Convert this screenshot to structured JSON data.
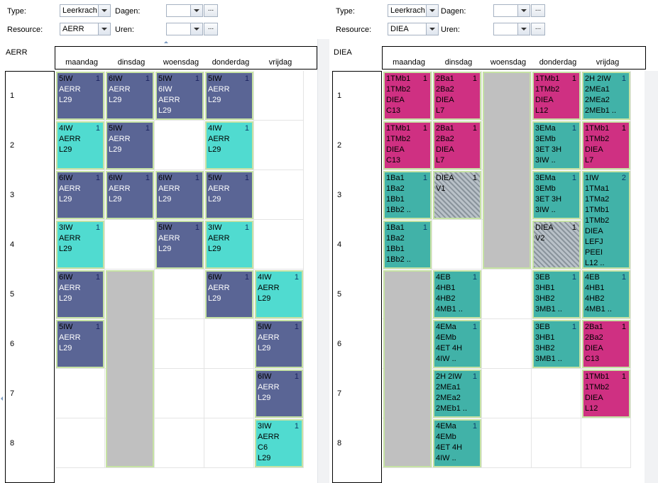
{
  "left": {
    "filters": {
      "type_label": "Type:",
      "type_value": "Leerkracht",
      "resource_label": "Resource:",
      "resource_value": "AERR",
      "dagen_label": "Dagen:",
      "dagen_value": "",
      "uren_label": "Uren:",
      "uren_value": "",
      "ellipsis": "..."
    },
    "resource_title": "AERR",
    "days": [
      "maandag",
      "dinsdag",
      "woensdag",
      "donderdag",
      "vrijdag"
    ],
    "rows": [
      "1",
      "2",
      "3",
      "4",
      "5",
      "6",
      "7",
      "8"
    ],
    "blocks": [
      {
        "day": 0,
        "row": 0,
        "span": 1,
        "color": "navy",
        "lines": [
          "5IW",
          "AERR",
          "L29"
        ],
        "count": "1"
      },
      {
        "day": 1,
        "row": 0,
        "span": 1,
        "color": "navy",
        "lines": [
          "6IW",
          "AERR",
          "L29"
        ],
        "count": "1"
      },
      {
        "day": 2,
        "row": 0,
        "span": 1,
        "color": "navy",
        "lines": [
          "5IW",
          "6IW",
          "AERR",
          "L29"
        ],
        "count": "1"
      },
      {
        "day": 3,
        "row": 0,
        "span": 1,
        "color": "navy",
        "lines": [
          "5IW",
          "AERR",
          "L29"
        ],
        "count": "1"
      },
      {
        "day": 0,
        "row": 1,
        "span": 1,
        "color": "cyan",
        "lines": [
          "4IW",
          "AERR",
          "L29"
        ],
        "count": "1"
      },
      {
        "day": 1,
        "row": 1,
        "span": 1,
        "color": "navy",
        "lines": [
          "5IW",
          "AERR",
          "L29"
        ],
        "count": "1"
      },
      {
        "day": 3,
        "row": 1,
        "span": 1,
        "color": "cyan",
        "lines": [
          "4IW",
          "AERR",
          "L29"
        ],
        "count": "1"
      },
      {
        "day": 0,
        "row": 2,
        "span": 1,
        "color": "navy",
        "lines": [
          "6IW",
          "AERR",
          "L29"
        ],
        "count": "1"
      },
      {
        "day": 1,
        "row": 2,
        "span": 1,
        "color": "navy",
        "lines": [
          "6IW",
          "AERR",
          "L29"
        ],
        "count": "1"
      },
      {
        "day": 2,
        "row": 2,
        "span": 1,
        "color": "navy",
        "lines": [
          "6IW",
          "AERR",
          "L29"
        ],
        "count": "1"
      },
      {
        "day": 3,
        "row": 2,
        "span": 1,
        "color": "navy",
        "lines": [
          "5IW",
          "AERR",
          "L29"
        ],
        "count": "1"
      },
      {
        "day": 0,
        "row": 3,
        "span": 1,
        "color": "cyan",
        "lines": [
          "3IW",
          "AERR",
          "L29"
        ],
        "count": "1"
      },
      {
        "day": 2,
        "row": 3,
        "span": 1,
        "color": "navy",
        "lines": [
          "5IW",
          "AERR",
          "L29"
        ],
        "count": "1"
      },
      {
        "day": 3,
        "row": 3,
        "span": 1,
        "color": "cyan",
        "lines": [
          "3IW",
          "AERR",
          "L29"
        ],
        "count": "1"
      },
      {
        "day": 0,
        "row": 4,
        "span": 1,
        "color": "navy",
        "lines": [
          "6IW",
          "AERR",
          "L29"
        ],
        "count": "1"
      },
      {
        "day": 1,
        "row": 4,
        "span": 4,
        "color": "grey",
        "lines": [],
        "count": ""
      },
      {
        "day": 3,
        "row": 4,
        "span": 1,
        "color": "navy",
        "lines": [
          "6IW",
          "AERR",
          "L29"
        ],
        "count": "1"
      },
      {
        "day": 4,
        "row": 4,
        "span": 1,
        "color": "cyan",
        "lines": [
          "4IW",
          "AERR",
          "L29"
        ],
        "count": "1"
      },
      {
        "day": 0,
        "row": 5,
        "span": 1,
        "color": "navy",
        "lines": [
          "5IW",
          "AERR",
          "L29"
        ],
        "count": "1"
      },
      {
        "day": 4,
        "row": 5,
        "span": 1,
        "color": "navy",
        "lines": [
          "5IW",
          "AERR",
          "L29"
        ],
        "count": "1"
      },
      {
        "day": 4,
        "row": 6,
        "span": 1,
        "color": "navy",
        "lines": [
          "6IW",
          "AERR",
          "L29"
        ],
        "count": "1"
      },
      {
        "day": 4,
        "row": 7,
        "span": 1,
        "color": "cyan",
        "lines": [
          "3IW",
          "AERR",
          "C6",
          "L29"
        ],
        "count": "1"
      }
    ]
  },
  "right": {
    "filters": {
      "type_label": "Type:",
      "type_value": "Leerkracht",
      "resource_label": "Resource:",
      "resource_value": "DIEA",
      "dagen_label": "Dagen:",
      "dagen_value": "",
      "uren_label": "Uren:",
      "uren_value": "",
      "ellipsis": "..."
    },
    "resource_title": "DIEA",
    "days": [
      "maandag",
      "dinsdag",
      "woensdag",
      "donderdag",
      "vrijdag"
    ],
    "rows": [
      "1",
      "2",
      "3",
      "4",
      "5",
      "6",
      "7",
      "8"
    ],
    "blocks": [
      {
        "day": 0,
        "row": 0,
        "span": 1,
        "color": "magenta",
        "lines": [
          "1TMb1",
          "1TMb2",
          "DIEA",
          "C13"
        ],
        "count": "1"
      },
      {
        "day": 1,
        "row": 0,
        "span": 1,
        "color": "magenta",
        "lines": [
          "2Ba1",
          "2Ba2",
          "DIEA",
          "L7"
        ],
        "count": "1"
      },
      {
        "day": 2,
        "row": 0,
        "span": 4,
        "color": "grey",
        "lines": [],
        "count": ""
      },
      {
        "day": 3,
        "row": 0,
        "span": 1,
        "color": "magenta",
        "lines": [
          "1TMb1",
          "1TMb2",
          "DIEA",
          "L12"
        ],
        "count": "1"
      },
      {
        "day": 4,
        "row": 0,
        "span": 1,
        "color": "teal",
        "lines": [
          "2H    2IW",
          "2MEa1",
          "2MEa2",
          "2MEb1 .."
        ],
        "count": "1"
      },
      {
        "day": 0,
        "row": 1,
        "span": 1,
        "color": "magenta",
        "lines": [
          "1TMb1",
          "1TMb2",
          "DIEA",
          "C13"
        ],
        "count": "1"
      },
      {
        "day": 1,
        "row": 1,
        "span": 1,
        "color": "magenta",
        "lines": [
          "2Ba1",
          "2Ba2",
          "DIEA",
          "L7"
        ],
        "count": "1"
      },
      {
        "day": 3,
        "row": 1,
        "span": 1,
        "color": "teal",
        "lines": [
          "3EMa",
          "3EMb",
          "3ET    3H",
          "3IW   .."
        ],
        "count": "1"
      },
      {
        "day": 4,
        "row": 1,
        "span": 1,
        "color": "magenta",
        "lines": [
          "1TMb1",
          "1TMb2",
          "DIEA",
          "L7"
        ],
        "count": "1"
      },
      {
        "day": 0,
        "row": 2,
        "span": 1,
        "color": "teal",
        "lines": [
          "1Ba1",
          "1Ba2",
          "1Bb1",
          "1Bb2 .."
        ],
        "count": "1"
      },
      {
        "day": 1,
        "row": 2,
        "span": 1,
        "color": "hatch",
        "lines": [
          "DIEA",
          "V1"
        ],
        "count": "1"
      },
      {
        "day": 3,
        "row": 2,
        "span": 1,
        "color": "teal",
        "lines": [
          "3EMa",
          "3EMb",
          "3ET    3H",
          "3IW   .."
        ],
        "count": "1"
      },
      {
        "day": 4,
        "row": 2,
        "span": 2,
        "color": "teal",
        "lines": [
          "1IW",
          "1TMa1",
          "1TMa2",
          "1TMb1",
          "1TMb2",
          "DIEA",
          "LEFJ",
          "PEEI",
          "L12 .."
        ],
        "count": "2"
      },
      {
        "day": 0,
        "row": 3,
        "span": 1,
        "color": "teal",
        "lines": [
          "1Ba1",
          "1Ba2",
          "1Bb1",
          "1Bb2 .."
        ],
        "count": "1"
      },
      {
        "day": 3,
        "row": 3,
        "span": 1,
        "color": "hatch",
        "lines": [
          "DIEA",
          "V2"
        ],
        "count": "1"
      },
      {
        "day": 0,
        "row": 4,
        "span": 4,
        "color": "grey",
        "lines": [],
        "count": ""
      },
      {
        "day": 1,
        "row": 4,
        "span": 1,
        "color": "teal",
        "lines": [
          "4EB",
          "4HB1",
          "4HB2",
          "4MB1 .."
        ],
        "count": "1"
      },
      {
        "day": 3,
        "row": 4,
        "span": 1,
        "color": "teal",
        "lines": [
          "3EB",
          "3HB1",
          "3HB2",
          "3MB1 .."
        ],
        "count": "1"
      },
      {
        "day": 4,
        "row": 4,
        "span": 1,
        "color": "teal",
        "lines": [
          "4EB",
          "4HB1",
          "4HB2",
          "4MB1 .."
        ],
        "count": "1"
      },
      {
        "day": 1,
        "row": 5,
        "span": 1,
        "color": "teal",
        "lines": [
          "4EMa",
          "4EMb",
          "4ET    4H",
          "4IW   .."
        ],
        "count": "1"
      },
      {
        "day": 3,
        "row": 5,
        "span": 1,
        "color": "teal",
        "lines": [
          "3EB",
          "3HB1",
          "3HB2",
          "3MB1 .."
        ],
        "count": "1"
      },
      {
        "day": 4,
        "row": 5,
        "span": 1,
        "color": "magenta",
        "lines": [
          "2Ba1",
          "2Ba2",
          "DIEA",
          "C13"
        ],
        "count": "1"
      },
      {
        "day": 1,
        "row": 6,
        "span": 1,
        "color": "teal",
        "lines": [
          "2H    2IW",
          "2MEa1",
          "2MEa2",
          "2MEb1 .."
        ],
        "count": "1"
      },
      {
        "day": 4,
        "row": 6,
        "span": 1,
        "color": "magenta",
        "lines": [
          "1TMb1",
          "1TMb2",
          "DIEA",
          "L12"
        ],
        "count": "1"
      },
      {
        "day": 1,
        "row": 7,
        "span": 1,
        "color": "teal",
        "lines": [
          "4EMa",
          "4EMb",
          "4ET    4H",
          "4IW   .."
        ],
        "count": "1"
      }
    ]
  }
}
